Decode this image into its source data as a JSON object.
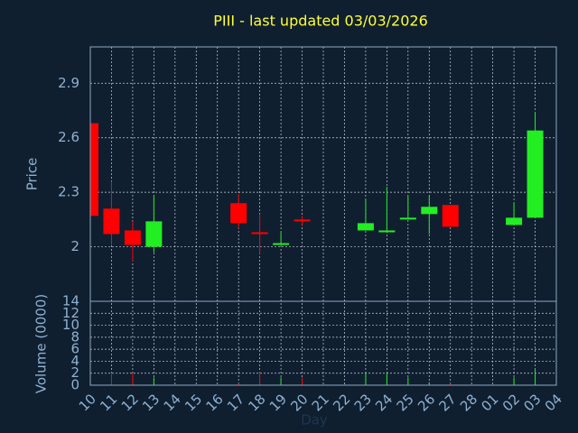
{
  "chart_data": [
    {
      "type": "candlestick",
      "title": "PIII - last updated 03/03/2026",
      "y_label": "Price",
      "categories": [
        "10",
        "11",
        "12",
        "13",
        "14",
        "15",
        "16",
        "17",
        "18",
        "19",
        "20",
        "21",
        "22",
        "23",
        "24",
        "25",
        "26",
        "27",
        "28",
        "01",
        "02",
        "03",
        "04"
      ],
      "open": [
        2.68,
        2.21,
        2.09,
        2.0,
        null,
        null,
        null,
        2.24,
        2.08,
        2.01,
        2.15,
        null,
        null,
        2.09,
        2.08,
        2.15,
        2.18,
        2.23,
        null,
        null,
        2.12,
        2.16,
        null
      ],
      "high": [
        2.68,
        2.36,
        2.14,
        2.28,
        null,
        null,
        null,
        2.29,
        2.18,
        2.08,
        2.17,
        null,
        null,
        2.26,
        2.33,
        2.28,
        2.28,
        2.23,
        null,
        null,
        2.24,
        2.74,
        null
      ],
      "low": [
        2.17,
        2.01,
        1.92,
        1.97,
        null,
        null,
        null,
        2.1,
        1.96,
        2.01,
        2.12,
        null,
        null,
        2.09,
        2.08,
        2.15,
        2.07,
        2.11,
        null,
        null,
        2.12,
        2.16,
        null
      ],
      "close": [
        2.17,
        2.07,
        2.01,
        2.14,
        null,
        null,
        null,
        2.13,
        2.07,
        2.02,
        2.14,
        null,
        null,
        2.13,
        2.09,
        2.16,
        2.22,
        2.11,
        null,
        null,
        2.16,
        2.64,
        null
      ],
      "up_color": "#22ee22",
      "down_color": "#ff0000",
      "ylim": [
        1.7,
        3.1
      ],
      "yticks": [
        2,
        2.3,
        2.6,
        2.9
      ],
      "grid": true
    },
    {
      "type": "bar",
      "y_label": "Volume (0000)",
      "x_label": "Day",
      "values": [
        0.5,
        2.1,
        2,
        1.3,
        null,
        null,
        null,
        0.3,
        2.2,
        1.3,
        1.3,
        null,
        null,
        2,
        2,
        1.3,
        0.5,
        0.3,
        null,
        null,
        1.3,
        2.6,
        null
      ],
      "ylim": [
        0,
        14
      ],
      "yticks": [
        0,
        2,
        4,
        6,
        8,
        10,
        12,
        14
      ],
      "grid": true
    }
  ]
}
